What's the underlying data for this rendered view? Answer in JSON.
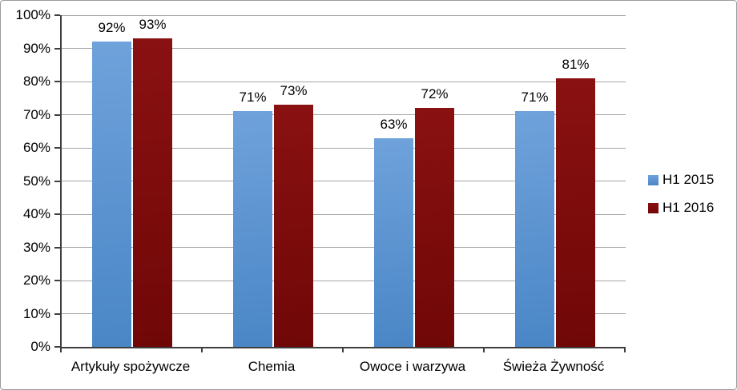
{
  "chart_data": {
    "type": "bar",
    "title": "",
    "xlabel": "",
    "ylabel": "",
    "categories": [
      "Artykuły spożywcze",
      "Chemia",
      "Owoce i warzywa",
      "Świeża Żywność"
    ],
    "series": [
      {
        "name": "H1 2015",
        "values": [
          92,
          71,
          63,
          71
        ],
        "color_top": "#6fa2db",
        "color_bottom": "#4a86c6"
      },
      {
        "name": "H1 2016",
        "values": [
          93,
          73,
          72,
          81
        ],
        "color_top": "#8a1111",
        "color_bottom": "#700707"
      }
    ],
    "value_suffix": "%",
    "data_labels": [
      "92%",
      "93%",
      "71%",
      "73%",
      "63%",
      "72%",
      "71%",
      "81%"
    ],
    "y_ticks": [
      "0%",
      "10%",
      "20%",
      "30%",
      "40%",
      "50%",
      "60%",
      "70%",
      "80%",
      "90%",
      "100%"
    ],
    "ylim": [
      0,
      100
    ],
    "grid": true,
    "legend_position": "right",
    "legend": [
      "H1 2015",
      "H1 2016"
    ]
  },
  "colors": {
    "gridline": "#a6a6a6",
    "axis": "#3e3e3e",
    "text": "#000000",
    "chart_border": "#9c9c9c",
    "background": "#ffffff",
    "series_blue": "#5b96d2",
    "series_dark_red": "#7d0b0b"
  }
}
